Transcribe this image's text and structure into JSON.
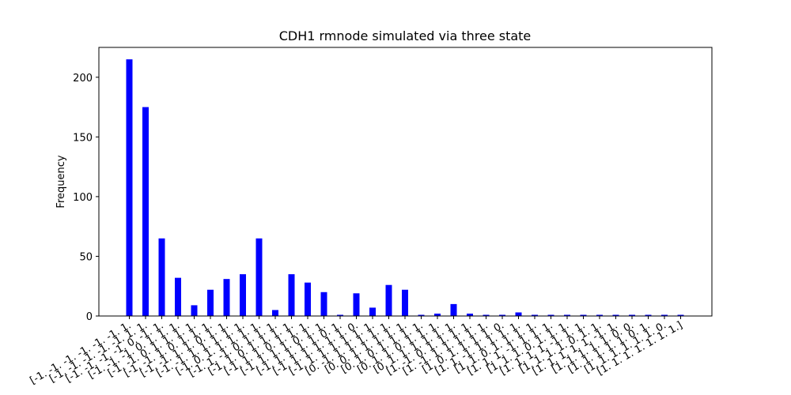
{
  "chart_data": {
    "type": "bar",
    "title": "CDH1 rmnode simulated via three state",
    "xlabel": "",
    "ylabel": "Frequency",
    "ylim": [
      0,
      225
    ],
    "yticks": [
      0,
      50,
      100,
      150,
      200
    ],
    "bar_color": "#0000ff",
    "grid": false,
    "categories": [
      "[-1. -1. -1. -1. -1. -1. 1.",
      "[-1. -1. -1. -1. -1. 1. 1.",
      "[-1. -1. -1. -1. 0. -1. 1.",
      "[-1. -1. -1. 0. 1. 1. 1.",
      "[-1. -1. 0. 1. 1. 1. 1.",
      "[-1. -1. 1. 0. 1. 1. 1.",
      "[-1. -1. 1. 1. 0. 1. 1.",
      "[-1. -1. 1. 1. 1. 1. 1.",
      "[-1. 0. 1. 1. 1. 1. 1.",
      "[-1. 1. -1. 0. 1. 1. 1.",
      "[-1. 1. 0. 1. 1. 1. 1.",
      "[-1. 1. 1. 0. 1. 1. 1.",
      "[-1. 1. 1. 1. 0. 1. 1.",
      "[-1. 1. 1. 1. 1. 0. 1.",
      "[-1. 1. 1. 1. 1. 1. 0.",
      "[-1. 1. 1. 1. 1. 1. 1.",
      "[0. -1. 1. 1. 1. 1. 1.",
      "[0. 0. 1. 1. 1. 1. 1.",
      "[0. 1. 0. 1. 1. 1. 1.",
      "[0. 1. 1. 0. 1. 1. 1.",
      "[0. 1. 1. 1. 1. 1. 1.",
      "[1. -1. 0. 1. 1. 1. 1.",
      "[1. -1. 1. 1. 1. 1. 1.",
      "[1. 0. 1. 1. 1. 1. 0.",
      "[1. 1. -1. 1. 1. 1. 1.",
      "[1. 1. 0. 1. 1. 1. 1.",
      "[1. 1. 1. -1. 1. 1. 1.",
      "[1. 1. 1. 0. 1. 1. 1.",
      "[1. 1. 1. 1. -1. 1. 1.",
      "[1. 1. 1. 1. 0. 1. 1.",
      "[1. 1. 1. 1. 1. -1. 1.",
      "[1. 1. 1. 1. 1. 0. 0.",
      "[1. 1. 1. 1. 1. 0. 1.",
      "[1. 1. 1. 1. 1. 1. 0.",
      "[1. 1. 1. 1. 1. 1. 1.]"
    ],
    "values": [
      215,
      175,
      65,
      32,
      9,
      22,
      31,
      35,
      65,
      5,
      35,
      28,
      20,
      1,
      19,
      7,
      26,
      22,
      1,
      2,
      10,
      2,
      1,
      1,
      3,
      1,
      1,
      1,
      1,
      1,
      1,
      1,
      1,
      1,
      1
    ]
  }
}
